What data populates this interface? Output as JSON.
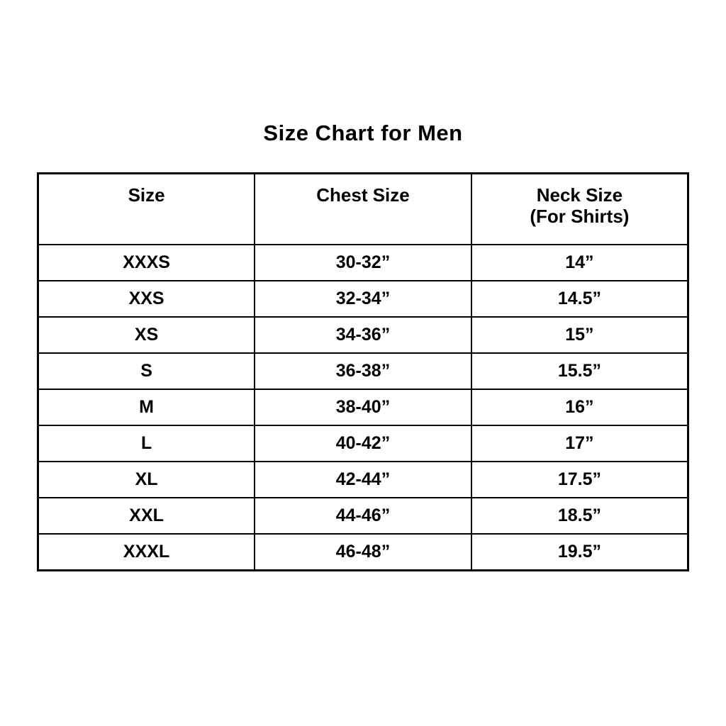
{
  "title": "Size Chart for Men",
  "chart_data": {
    "type": "table",
    "title": "Size Chart for Men",
    "columns": [
      {
        "label": "Size",
        "sublabel": ""
      },
      {
        "label": "Chest Size",
        "sublabel": ""
      },
      {
        "label": "Neck Size",
        "sublabel": "(For Shirts)"
      }
    ],
    "rows": [
      [
        "XXXS",
        "30-32”",
        "14”"
      ],
      [
        "XXS",
        "32-34”",
        "14.5”"
      ],
      [
        "XS",
        "34-36”",
        "15”"
      ],
      [
        "S",
        "36-38”",
        "15.5”"
      ],
      [
        "M",
        "38-40”",
        "16”"
      ],
      [
        "L",
        "40-42”",
        "17”"
      ],
      [
        "XL",
        "42-44”",
        "17.5”"
      ],
      [
        "XXL",
        "44-46”",
        "18.5”"
      ],
      [
        "XXXL",
        "46-48”",
        "19.5”"
      ]
    ]
  },
  "colors": {
    "background": "#ffffff",
    "text": "#000000",
    "border": "#000000"
  }
}
